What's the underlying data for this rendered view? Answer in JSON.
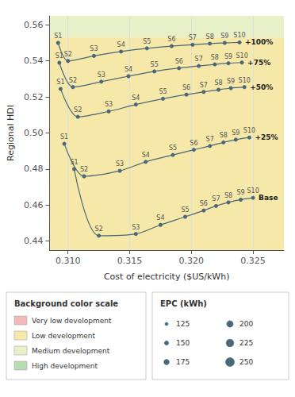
{
  "chart_data": {
    "type": "line",
    "marker": "circle",
    "xlabel": "Cost of electricity ($US/kWh)",
    "ylabel": "Regional HDI",
    "xlim": [
      0.3085,
      0.3275
    ],
    "ylim": [
      0.435,
      0.565
    ],
    "xticks": [
      {
        "value": 0.31,
        "label": "0.310"
      },
      0.315,
      {
        "value": 0.32,
        "label": "0.320"
      },
      0.325
    ],
    "yticks": [
      0.44,
      0.46,
      0.48,
      {
        "value": 0.5,
        "label": "0.50"
      },
      0.52,
      0.54,
      0.56
    ],
    "grid": "x",
    "bands": [
      {
        "from": 0.553,
        "to": 0.565,
        "color": "#e8f0c8"
      },
      {
        "from": 0.435,
        "to": 0.553,
        "color": "#f5e8a8"
      }
    ],
    "series": [
      {
        "name": "Base",
        "color": "#4a6878",
        "x": [
          0.3105,
          0.3125,
          0.3155,
          0.3175,
          0.3195,
          0.321,
          0.322,
          0.323,
          0.324,
          0.325
        ],
        "values": [
          0.48,
          0.443,
          0.444,
          0.449,
          0.4535,
          0.457,
          0.4595,
          0.4615,
          0.463,
          0.464
        ],
        "point_labels": [
          "S1",
          "S2",
          "S3",
          "S4",
          "S5",
          "S6",
          "S7",
          "S8",
          "S9",
          "S10"
        ]
      },
      {
        "name": "+25%",
        "color": "#4a6878",
        "x": [
          0.3097,
          0.3113,
          0.3142,
          0.3163,
          0.3185,
          0.3202,
          0.3215,
          0.3226,
          0.3236,
          0.3247
        ],
        "values": [
          0.494,
          0.476,
          0.479,
          0.484,
          0.4878,
          0.4907,
          0.4928,
          0.4948,
          0.4963,
          0.4975
        ],
        "point_labels": [
          "S1",
          "S2",
          "S3",
          "S4",
          "S5",
          "S6",
          "S7",
          "S8",
          "S9",
          "S10"
        ]
      },
      {
        "name": "+50%",
        "color": "#4a6878",
        "x": [
          0.3094,
          0.3108,
          0.3133,
          0.3155,
          0.3177,
          0.3196,
          0.321,
          0.3222,
          0.3232,
          0.3243
        ],
        "values": [
          0.5245,
          0.509,
          0.512,
          0.5158,
          0.519,
          0.5213,
          0.5228,
          0.524,
          0.5249,
          0.5255
        ],
        "point_labels": [
          "S1",
          "S2",
          "S3",
          "S4",
          "S5",
          "S6",
          "S7",
          "S8",
          "S9",
          "S10"
        ]
      },
      {
        "name": "+75%",
        "color": "#4a6878",
        "x": [
          0.3093,
          0.3104,
          0.3127,
          0.3149,
          0.317,
          0.319,
          0.3206,
          0.3219,
          0.323,
          0.3241
        ],
        "values": [
          0.539,
          0.5255,
          0.5285,
          0.5315,
          0.5342,
          0.536,
          0.5372,
          0.5381,
          0.5387,
          0.5391
        ],
        "point_labels": [
          "S1",
          "S2",
          "S3",
          "S4",
          "S5",
          "S6",
          "S7",
          "S8",
          "S9",
          "S10"
        ]
      },
      {
        "name": "+100%",
        "color": "#4a6878",
        "x": [
          0.3092,
          0.31,
          0.3121,
          0.3143,
          0.3164,
          0.3184,
          0.3201,
          0.3215,
          0.3227,
          0.3239
        ],
        "values": [
          0.55,
          0.54,
          0.5428,
          0.5452,
          0.547,
          0.5482,
          0.549,
          0.5496,
          0.55,
          0.5503
        ],
        "point_labels": [
          "S1",
          "S2",
          "S3",
          "S4",
          "S5",
          "S6",
          "S7",
          "S8",
          "S9",
          "S10"
        ]
      }
    ],
    "legends": [
      {
        "title": "Background color scale",
        "entries": [
          {
            "color": "#f4b8b8",
            "label": "Very low development"
          },
          {
            "color": "#f5e8a8",
            "label": "Low development"
          },
          {
            "color": "#e8f0c8",
            "label": "Medium development"
          },
          {
            "color": "#b8ddb0",
            "label": "High development"
          }
        ]
      },
      {
        "title": "EPC (kWh)",
        "entries": [
          125,
          150,
          175,
          200,
          225,
          250
        ]
      }
    ]
  }
}
